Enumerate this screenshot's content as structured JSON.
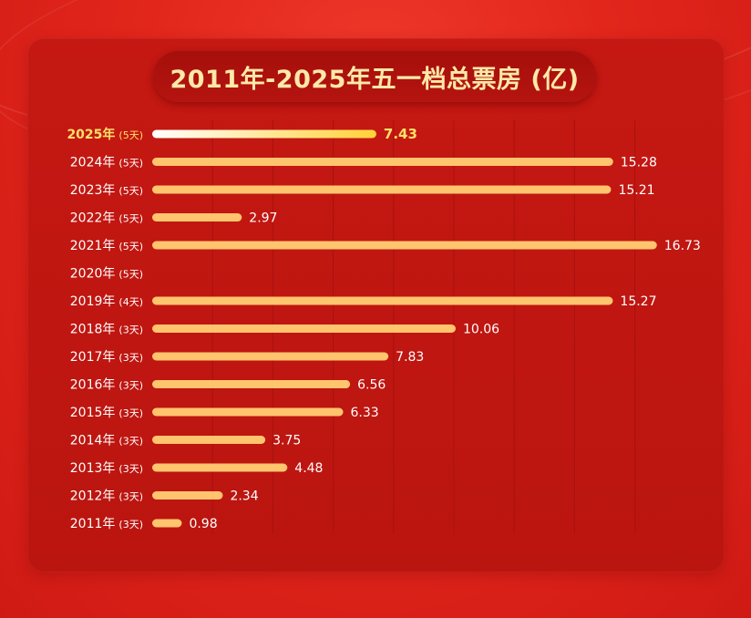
{
  "title": "2011年-2025年五一档总票房 (亿)",
  "chart_data": {
    "type": "bar",
    "orientation": "horizontal",
    "title": "2011年-2025年五一档总票房 (亿)",
    "xlabel": "",
    "ylabel": "",
    "xlim": [
      0,
      17
    ],
    "grid": true,
    "categories": [
      {
        "year": "2025年",
        "days": "(5天)"
      },
      {
        "year": "2024年",
        "days": "(5天)"
      },
      {
        "year": "2023年",
        "days": "(5天)"
      },
      {
        "year": "2022年",
        "days": "(5天)"
      },
      {
        "year": "2021年",
        "days": "(5天)"
      },
      {
        "year": "2020年",
        "days": "(5天)"
      },
      {
        "year": "2019年",
        "days": "(4天)"
      },
      {
        "year": "2018年",
        "days": "(3天)"
      },
      {
        "year": "2017年",
        "days": "(3天)"
      },
      {
        "year": "2016年",
        "days": "(3天)"
      },
      {
        "year": "2015年",
        "days": "(3天)"
      },
      {
        "year": "2014年",
        "days": "(3天)"
      },
      {
        "year": "2013年",
        "days": "(3天)"
      },
      {
        "year": "2012年",
        "days": "(3天)"
      },
      {
        "year": "2011年",
        "days": "(3天)"
      }
    ],
    "values": [
      7.43,
      15.28,
      15.21,
      2.97,
      16.73,
      null,
      15.27,
      10.06,
      7.83,
      6.56,
      6.33,
      3.75,
      4.48,
      2.34,
      0.98
    ],
    "value_labels": [
      "7.43",
      "15.28",
      "15.21",
      "2.97",
      "16.73",
      "",
      "15.27",
      "10.06",
      "7.83",
      "6.56",
      "6.33",
      "3.75",
      "4.48",
      "2.34",
      "0.98"
    ],
    "highlight_index": 0,
    "colors": {
      "bar": "#ffc46e",
      "bar_highlight_start": "#ffffff",
      "bar_highlight_end": "#ffd23a",
      "label": "#ffffff",
      "label_highlight": "#ffe06a",
      "grid": "#a8120e"
    }
  }
}
